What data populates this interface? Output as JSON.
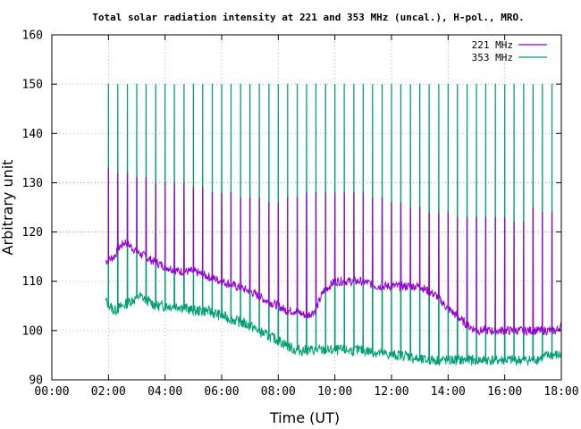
{
  "chart_data": {
    "type": "line",
    "title": "Total solar radiation intensity at 221 and 353 MHz (uncal.), H-pol., MRO.",
    "xlabel": "Time (UT)",
    "ylabel": "Arbitrary unit",
    "xlim": [
      0,
      18
    ],
    "ylim": [
      90,
      160
    ],
    "x_ticks": [
      0,
      2,
      4,
      6,
      8,
      10,
      12,
      14,
      16,
      18
    ],
    "x_tick_labels": [
      "00:00",
      "02:00",
      "04:00",
      "06:00",
      "08:00",
      "10:00",
      "12:00",
      "14:00",
      "16:00",
      "18:00"
    ],
    "y_ticks": [
      90,
      100,
      110,
      120,
      130,
      140,
      150,
      160
    ],
    "y_tick_labels": [
      "90",
      "100",
      "110",
      "120",
      "130",
      "140",
      "150",
      "160"
    ],
    "grid": true,
    "legend_position": "top-right",
    "calibration_spike_top": 150,
    "series": [
      {
        "name": "221 MHz",
        "color": "#9400d3",
        "x": [
          1.9,
          2.2,
          2.4,
          2.6,
          2.8,
          3.0,
          3.3,
          3.6,
          4.0,
          4.5,
          5.0,
          5.5,
          6.0,
          6.5,
          7.0,
          7.3,
          7.6,
          8.0,
          8.3,
          8.6,
          9.0,
          9.3,
          9.6,
          10.0,
          10.5,
          11.0,
          11.5,
          12.0,
          12.5,
          13.0,
          13.3,
          13.6,
          13.9,
          14.3,
          14.7,
          15.0,
          15.5,
          16.0,
          16.5,
          17.0,
          17.5,
          17.8,
          18.0
        ],
        "y": [
          114,
          115,
          117,
          118,
          117,
          116,
          115,
          114,
          113,
          112,
          112,
          111,
          110,
          109,
          108,
          107,
          106,
          105,
          104,
          104,
          103,
          104,
          108,
          110,
          110,
          110,
          109,
          109,
          109,
          109,
          108,
          107,
          105,
          103,
          101,
          100,
          100,
          100,
          100,
          100,
          100,
          100,
          101
        ]
      },
      {
        "name": "353 MHz",
        "color": "#009e73",
        "x": [
          1.9,
          2.2,
          2.5,
          2.8,
          3.1,
          3.4,
          3.7,
          4.0,
          4.5,
          5.0,
          5.5,
          6.0,
          6.5,
          7.0,
          7.3,
          7.6,
          8.0,
          8.3,
          8.6,
          9.0,
          10.0,
          11.0,
          12.0,
          12.5,
          13.0,
          13.5,
          14.0,
          15.0,
          16.0,
          17.0,
          17.6,
          18.0
        ],
        "y": [
          106,
          104,
          105,
          106,
          107,
          106,
          105,
          105,
          105,
          104,
          104,
          103,
          102,
          101,
          100,
          99,
          98,
          97,
          96,
          96,
          96,
          96,
          95,
          95,
          94,
          94,
          94,
          94,
          94,
          94,
          95,
          95
        ]
      }
    ],
    "spikes": {
      "221 MHz": {
        "x": [
          2.0,
          2.33,
          2.67,
          3.0,
          3.33,
          3.67,
          4.0,
          4.33,
          4.67,
          5.0,
          5.33,
          5.67,
          6.0,
          6.33,
          6.67,
          7.0,
          7.33,
          7.67,
          8.0,
          8.33,
          8.67,
          9.0,
          9.33,
          9.67,
          10.0,
          10.33,
          10.67,
          11.0,
          11.33,
          11.67,
          12.0,
          12.33,
          12.67,
          13.0,
          13.33,
          13.67,
          14.0,
          14.33,
          14.67,
          15.0,
          15.33,
          15.67,
          16.0,
          16.33,
          16.67,
          17.0,
          17.33,
          17.67
        ],
        "y": [
          133,
          132,
          132,
          131,
          131,
          130,
          130,
          130,
          130,
          129,
          129,
          128,
          128,
          128,
          127,
          127,
          127,
          126,
          126,
          127,
          127,
          128,
          128,
          128,
          128,
          128,
          128,
          128,
          127,
          127,
          126,
          126,
          125,
          125,
          124,
          124,
          124,
          123,
          123,
          123,
          123,
          123,
          123,
          122,
          122,
          125,
          124,
          124
        ]
      },
      "353 MHz": {
        "x": [
          2.0,
          2.33,
          2.67,
          3.0,
          3.33,
          3.67,
          4.0,
          4.33,
          4.67,
          5.0,
          5.33,
          5.67,
          6.0,
          6.33,
          6.67,
          7.0,
          7.33,
          7.67,
          8.0,
          8.33,
          8.67,
          9.0,
          9.33,
          9.67,
          10.0,
          10.33,
          10.67,
          11.0,
          11.33,
          11.67,
          12.0,
          12.33,
          12.67,
          13.0,
          13.33,
          13.67,
          14.0,
          14.33,
          14.67,
          15.0,
          15.33,
          15.67,
          16.0,
          16.33,
          16.67,
          17.0,
          17.33,
          17.67
        ],
        "y": [
          150,
          150,
          150,
          150,
          150,
          150,
          150,
          150,
          150,
          150,
          150,
          150,
          150,
          150,
          150,
          150,
          150,
          150,
          150,
          150,
          150,
          150,
          150,
          150,
          150,
          150,
          150,
          150,
          150,
          150,
          150,
          150,
          150,
          150,
          150,
          150,
          150,
          150,
          150,
          150,
          150,
          150,
          150,
          150,
          150,
          150,
          150,
          150
        ]
      }
    }
  }
}
